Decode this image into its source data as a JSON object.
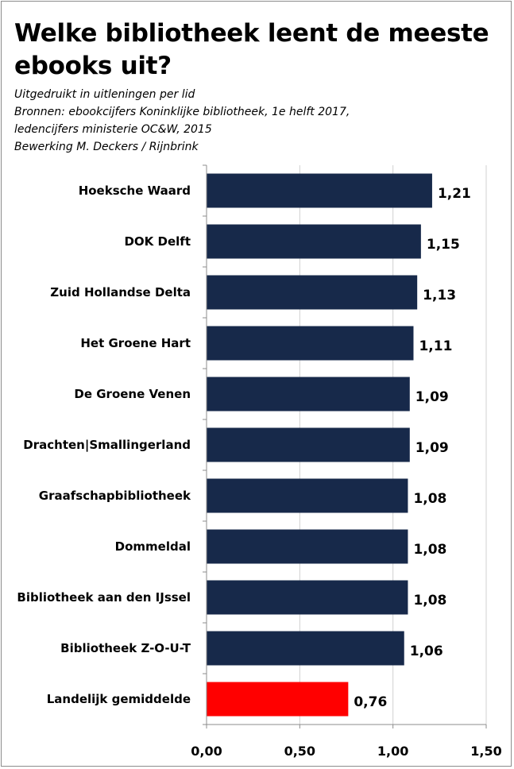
{
  "title": "Welke bibliotheek leent de meeste ebooks uit?",
  "subtitle_lines": [
    "Uitgedruikt in uitleningen per lid",
    "Bronnen: ebookcijfers Koninklijke bibliotheek, 1e helft 2017,",
    "ledencijfers ministerie OC&W, 2015",
    "Bewerking M. Deckers / Rijnbrink"
  ],
  "chart_data": {
    "type": "bar",
    "orientation": "horizontal",
    "title": "Welke bibliotheek leent de meeste ebooks uit?",
    "xlabel": "",
    "ylabel": "",
    "categories": [
      "Hoeksche Waard",
      "DOK Delft",
      "Zuid Hollandse Delta",
      "Het Groene Hart",
      "De Groene Venen",
      "Drachten|Smallingerland",
      "Graafschapbibliotheek",
      "Dommeldal",
      "Bibliotheek aan den IJssel",
      "Bibliotheek Z-O-U-T",
      "Landelijk gemiddelde"
    ],
    "values": [
      1.21,
      1.15,
      1.13,
      1.11,
      1.09,
      1.09,
      1.08,
      1.08,
      1.08,
      1.06,
      0.76
    ],
    "value_labels": [
      "1,21",
      "1,15",
      "1,13",
      "1,11",
      "1,09",
      "1,09",
      "1,08",
      "1,08",
      "1,08",
      "1,06",
      "0,76"
    ],
    "bar_colors": [
      "#17294a",
      "#17294a",
      "#17294a",
      "#17294a",
      "#17294a",
      "#17294a",
      "#17294a",
      "#17294a",
      "#17294a",
      "#17294a",
      "#ff0000"
    ],
    "xlim": [
      0,
      1.5
    ],
    "xticks": [
      0,
      0.5,
      1.0,
      1.5
    ],
    "xtick_labels": [
      "0,00",
      "0,50",
      "1,00",
      "1,50"
    ],
    "grid": true,
    "legend": "none"
  }
}
